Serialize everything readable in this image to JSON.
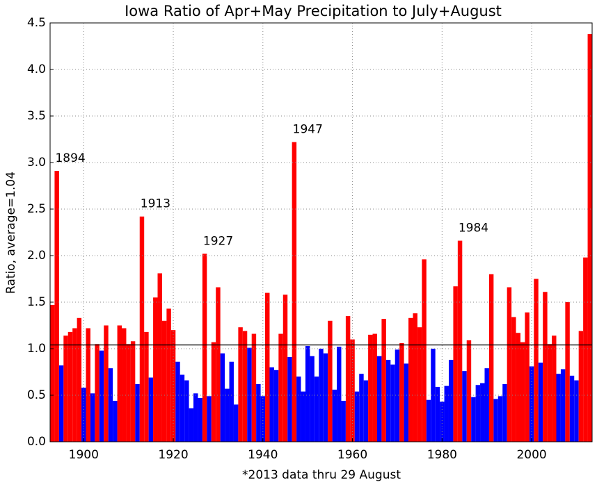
{
  "chart_data": {
    "type": "bar",
    "title": "Iowa Ratio of Apr+May Precipitation to July+August",
    "xlabel": "*2013 data thru 29 August",
    "ylabel": "Ratio, average=1.04",
    "average": 1.04,
    "above_color": "#ff0000",
    "below_color": "#0000ff",
    "x": [
      1893,
      1894,
      1895,
      1896,
      1897,
      1898,
      1899,
      1900,
      1901,
      1902,
      1903,
      1904,
      1905,
      1906,
      1907,
      1908,
      1909,
      1910,
      1911,
      1912,
      1913,
      1914,
      1915,
      1916,
      1917,
      1918,
      1919,
      1920,
      1921,
      1922,
      1923,
      1924,
      1925,
      1926,
      1927,
      1928,
      1929,
      1930,
      1931,
      1932,
      1933,
      1934,
      1935,
      1936,
      1937,
      1938,
      1939,
      1940,
      1941,
      1942,
      1943,
      1944,
      1945,
      1946,
      1947,
      1948,
      1949,
      1950,
      1951,
      1952,
      1953,
      1954,
      1955,
      1956,
      1957,
      1958,
      1959,
      1960,
      1961,
      1962,
      1963,
      1964,
      1965,
      1966,
      1967,
      1968,
      1969,
      1970,
      1971,
      1972,
      1973,
      1974,
      1975,
      1976,
      1977,
      1978,
      1979,
      1980,
      1981,
      1982,
      1983,
      1984,
      1985,
      1986,
      1987,
      1988,
      1989,
      1990,
      1991,
      1992,
      1993,
      1994,
      1995,
      1996,
      1997,
      1998,
      1999,
      2000,
      2001,
      2002,
      2003,
      2004,
      2005,
      2006,
      2007,
      2008,
      2009,
      2010,
      2011,
      2012,
      2013
    ],
    "values": [
      1.47,
      2.91,
      0.82,
      1.14,
      1.18,
      1.22,
      1.33,
      0.58,
      1.22,
      0.52,
      1.05,
      0.98,
      1.25,
      0.79,
      0.44,
      1.25,
      1.22,
      1.05,
      1.08,
      0.62,
      2.42,
      1.18,
      0.69,
      1.55,
      1.81,
      1.3,
      1.43,
      1.2,
      0.86,
      0.72,
      0.66,
      0.36,
      0.52,
      0.47,
      2.02,
      0.49,
      1.07,
      1.66,
      0.95,
      0.57,
      0.86,
      0.4,
      1.23,
      1.19,
      1.01,
      1.16,
      0.62,
      0.49,
      1.6,
      0.8,
      0.77,
      1.16,
      1.58,
      0.91,
      3.22,
      0.7,
      0.54,
      1.03,
      0.92,
      0.7,
      1.0,
      0.95,
      1.3,
      0.56,
      1.02,
      0.44,
      1.35,
      1.1,
      0.54,
      0.73,
      0.66,
      1.15,
      1.16,
      0.92,
      1.32,
      0.88,
      0.83,
      0.99,
      1.06,
      0.84,
      1.33,
      1.38,
      1.23,
      1.96,
      0.45,
      1.0,
      0.59,
      0.43,
      0.6,
      0.88,
      1.67,
      2.16,
      0.76,
      1.09,
      0.48,
      0.61,
      0.63,
      0.79,
      1.8,
      0.46,
      0.49,
      0.62,
      1.66,
      1.34,
      1.17,
      1.07,
      1.39,
      0.81,
      1.75,
      0.85,
      1.61,
      1.05,
      1.14,
      0.73,
      0.78,
      1.5,
      0.71,
      0.66,
      1.19,
      1.98,
      4.38
    ],
    "annotations": [
      {
        "label": "1894",
        "x": 1894,
        "y": 2.91
      },
      {
        "label": "1913",
        "x": 1913,
        "y": 2.42
      },
      {
        "label": "1927",
        "x": 1927,
        "y": 2.02
      },
      {
        "label": "1947",
        "x": 1947,
        "y": 3.22
      },
      {
        "label": "1984",
        "x": 1984,
        "y": 2.16
      }
    ],
    "xlim": [
      1892.5,
      2013.5
    ],
    "xticks": [
      1900,
      1920,
      1940,
      1960,
      1980,
      2000
    ],
    "ylim": [
      0,
      4.5
    ],
    "yticks": [
      {
        "value": 0,
        "label": "0.0"
      },
      {
        "value": 0.5,
        "label": "0.5"
      },
      {
        "value": 1,
        "label": "1.0"
      },
      {
        "value": 1.5,
        "label": "1.5"
      },
      {
        "value": 2,
        "label": "2.0"
      },
      {
        "value": 2.5,
        "label": "2.5"
      },
      {
        "value": 3,
        "label": "3.0"
      },
      {
        "value": 3.5,
        "label": "3.5"
      },
      {
        "value": 4,
        "label": "4.0"
      },
      {
        "value": 4.5,
        "label": "4.5"
      }
    ],
    "grid": true
  }
}
